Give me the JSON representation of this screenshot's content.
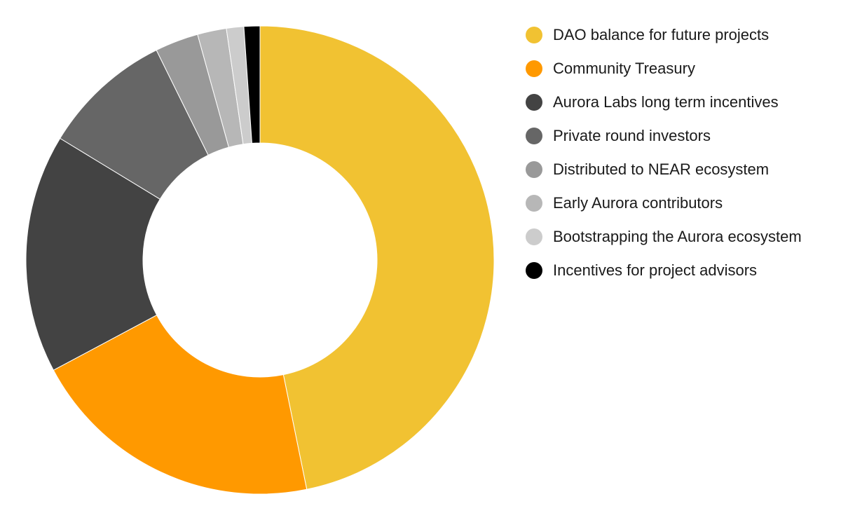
{
  "chart_data": {
    "type": "pie",
    "variant": "donut",
    "categories": [
      "DAO balance for future projects",
      "Community Treasury",
      "Aurora Labs long term incentives",
      "Private round investors",
      "Distributed to NEAR ecosystem",
      "Early Aurora contributors",
      "Bootstrapping the Aurora ecosystem",
      "Incentives for project advisors"
    ],
    "values": [
      46.8,
      20.4,
      16.5,
      9.0,
      3.0,
      2.0,
      1.2,
      1.1
    ],
    "colors": [
      "#F1C232",
      "#FF9900",
      "#434343",
      "#666666",
      "#999999",
      "#B7B7B7",
      "#CCCCCC",
      "#000000"
    ],
    "legend_position": "right",
    "title": ""
  }
}
